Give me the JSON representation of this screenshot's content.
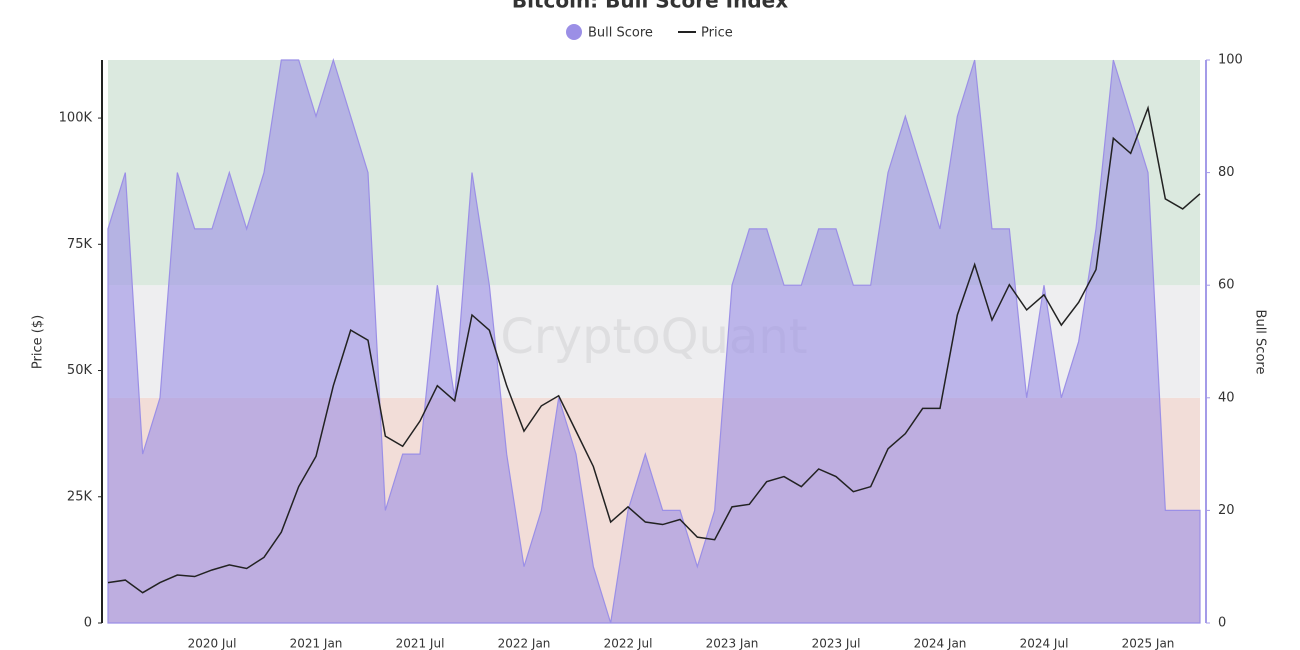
{
  "chart_data": {
    "type": "dual_area_line",
    "title": "Bitcoin: Bull Score Index",
    "watermark": "CryptoQuant",
    "y_label": "Price ($)",
    "y2_label": "Bull Score",
    "categories": [
      null,
      null,
      null,
      null,
      null,
      null,
      "2020 Jul",
      null,
      null,
      null,
      null,
      null,
      "2021 Jan",
      null,
      null,
      null,
      null,
      null,
      "2021 Jul",
      null,
      null,
      null,
      null,
      null,
      "2022 Jan",
      null,
      null,
      null,
      null,
      null,
      "2022 Jul",
      null,
      null,
      null,
      null,
      null,
      "2023 Jan",
      null,
      null,
      null,
      null,
      null,
      "2023 Jul",
      null,
      null,
      null,
      null,
      null,
      "2024 Jan",
      null,
      null,
      null,
      null,
      null,
      "2024 Jul",
      null,
      null,
      null,
      null,
      null,
      "2025 Jan",
      null,
      null,
      null
    ],
    "series": [
      {
        "name": "Bull Score",
        "color": "#9b8fe6",
        "axis": "y2",
        "kind": "area",
        "values": [
          70,
          80,
          30,
          40,
          80,
          70,
          70,
          80,
          70,
          80,
          100,
          100,
          90,
          100,
          90,
          80,
          20,
          30,
          30,
          60,
          40,
          80,
          60,
          30,
          10,
          20,
          40,
          30,
          10,
          0,
          20,
          30,
          20,
          20,
          10,
          20,
          60,
          70,
          70,
          60,
          60,
          70,
          70,
          60,
          60,
          80,
          90,
          80,
          70,
          90,
          100,
          70,
          70,
          40,
          60,
          40,
          50,
          70,
          100,
          90,
          80,
          20,
          20,
          20
        ]
      },
      {
        "name": "Price",
        "color": "#222222",
        "axis": "y",
        "kind": "line",
        "values": [
          8000,
          8500,
          6000,
          8000,
          9500,
          9200,
          10500,
          11500,
          10800,
          13000,
          18000,
          27000,
          33000,
          47000,
          58000,
          56000,
          37000,
          35000,
          40000,
          47000,
          44000,
          61000,
          58000,
          47000,
          38000,
          43000,
          45000,
          38000,
          31000,
          20000,
          23000,
          20000,
          19500,
          20500,
          17000,
          16500,
          23000,
          23500,
          28000,
          29000,
          27000,
          30500,
          29000,
          26000,
          27000,
          34500,
          37500,
          42500,
          42500,
          61000,
          71000,
          60000,
          67000,
          62000,
          65000,
          59000,
          63500,
          70000,
          96000,
          93000,
          102000,
          84000,
          82000,
          85000
        ]
      }
    ],
    "bands": [
      {
        "from": 0,
        "to": 40,
        "color": "#f2ddd8"
      },
      {
        "from": 40,
        "to": 60,
        "color": "#eeeef0"
      },
      {
        "from": 60,
        "to": 100,
        "color": "#dbe9df"
      }
    ],
    "ylim": [
      0,
      111500
    ],
    "yticks": [
      0,
      {
        "value": 25000,
        "label": "25K"
      },
      {
        "value": 50000,
        "label": "50K"
      },
      {
        "value": 75000,
        "label": "75K"
      },
      {
        "value": 100000,
        "label": "100K"
      }
    ],
    "y2lim": [
      0,
      100
    ],
    "y2ticks": [
      0,
      20,
      40,
      60,
      80,
      100
    ]
  }
}
